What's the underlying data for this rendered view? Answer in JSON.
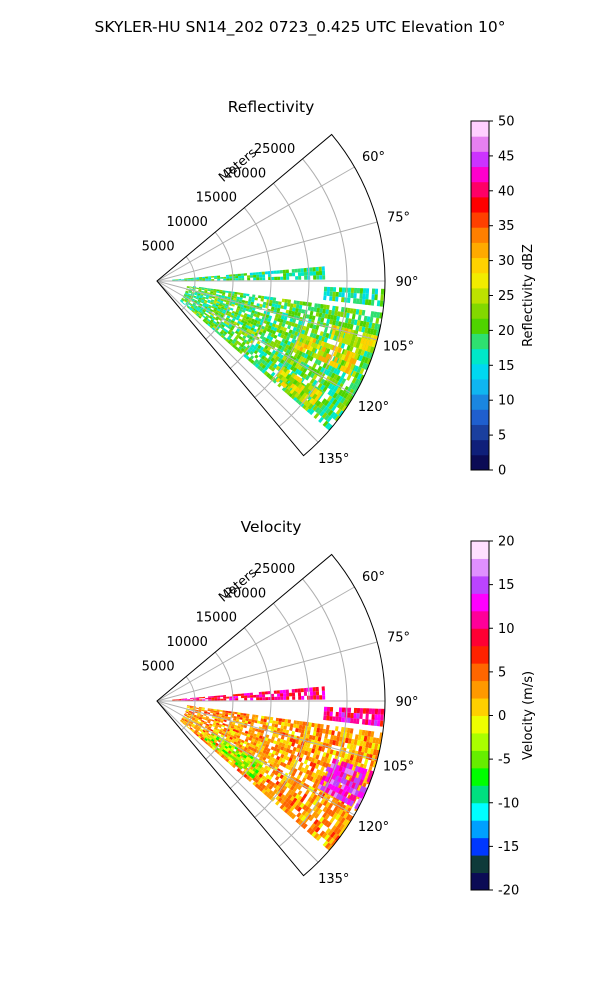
{
  "figure_title": "SKYLER-HU  SN14_202  0723_0.425 UTC Elevation 10°",
  "chart_data": [
    {
      "type": "heatmap",
      "projection": "polar-sector",
      "title": "Reflectivity",
      "range_label": "Meters",
      "azimuth_range_deg": [
        50,
        140
      ],
      "azimuth_ticks": [
        "60°",
        "75°",
        "90°",
        "105°",
        "120°",
        "135°"
      ],
      "range_max_m": 30000,
      "range_ticks": [
        "5000",
        "10000",
        "15000",
        "20000",
        "25000"
      ],
      "grid": true,
      "colorbar": {
        "label": "Reflectivity dBZ",
        "min": 0,
        "max": 50,
        "ticks": [
          "0",
          "5",
          "10",
          "15",
          "20",
          "25",
          "30",
          "35",
          "40",
          "45",
          "50"
        ],
        "colormap": "NWS reflectivity (pyart)"
      },
      "echo_regions": [
        {
          "az": [
            85,
            89
          ],
          "r_km": [
            2,
            22
          ],
          "value": 18
        },
        {
          "az": [
            92,
            96
          ],
          "r_km": [
            22,
            34
          ],
          "value": 18
        },
        {
          "az": [
            98,
            130
          ],
          "r_km": [
            4,
            36
          ],
          "value": 20
        },
        {
          "az": [
            104,
            108
          ],
          "r_km": [
            24,
            30
          ],
          "value": 27
        },
        {
          "az": [
            110,
            116
          ],
          "r_km": [
            20,
            28
          ],
          "value": 28
        },
        {
          "az": [
            124,
            130
          ],
          "r_km": [
            20,
            26
          ],
          "value": 26
        }
      ]
    },
    {
      "type": "heatmap",
      "projection": "polar-sector",
      "title": "Velocity",
      "range_label": "Meters",
      "azimuth_range_deg": [
        50,
        140
      ],
      "azimuth_ticks": [
        "60°",
        "75°",
        "90°",
        "105°",
        "120°",
        "135°"
      ],
      "range_max_m": 30000,
      "range_ticks": [
        "5000",
        "10000",
        "15000",
        "20000",
        "25000"
      ],
      "grid": true,
      "colorbar": {
        "label": "Velocity (m/s)",
        "min": -20,
        "max": 20,
        "ticks": [
          "-20",
          "-15",
          "-10",
          "-5",
          "0",
          "5",
          "10",
          "15",
          "20"
        ],
        "colormap": "NWS velocity (pyart)"
      },
      "echo_regions": [
        {
          "az": [
            85,
            89
          ],
          "r_km": [
            2,
            22
          ],
          "value": 10
        },
        {
          "az": [
            92,
            96
          ],
          "r_km": [
            22,
            34
          ],
          "value": 11
        },
        {
          "az": [
            98,
            130
          ],
          "r_km": [
            4,
            36
          ],
          "value": 3
        },
        {
          "az": [
            108,
            118
          ],
          "r_km": [
            24,
            34
          ],
          "value": 14
        },
        {
          "az": [
            120,
            128
          ],
          "r_km": [
            8,
            16
          ],
          "value": -4
        }
      ]
    }
  ],
  "colors": {
    "reflectivity_scale": [
      "#0b0b55",
      "#0f1f7a",
      "#1a3f9e",
      "#1f5fce",
      "#1a86e0",
      "#10b6f0",
      "#00d8f0",
      "#00e8c8",
      "#2ee070",
      "#4fd400",
      "#83d800",
      "#bde200",
      "#f2ec00",
      "#ffd200",
      "#ffaa00",
      "#ff7f00",
      "#ff4000",
      "#ff0000",
      "#ff0066",
      "#ff00cc",
      "#cc33ff",
      "#e680f0",
      "#ffd0ff"
    ],
    "velocity_scale": [
      "#0b0b55",
      "#0e3a3a",
      "#0038ff",
      "#00a0ff",
      "#00ffff",
      "#00e080",
      "#00ff00",
      "#66ee00",
      "#aaff00",
      "#eeff00",
      "#ffd000",
      "#ff9900",
      "#ff6600",
      "#ff2200",
      "#ff0033",
      "#ff0099",
      "#ff00ff",
      "#bb44ff",
      "#e090ff",
      "#ffe0ff"
    ]
  }
}
